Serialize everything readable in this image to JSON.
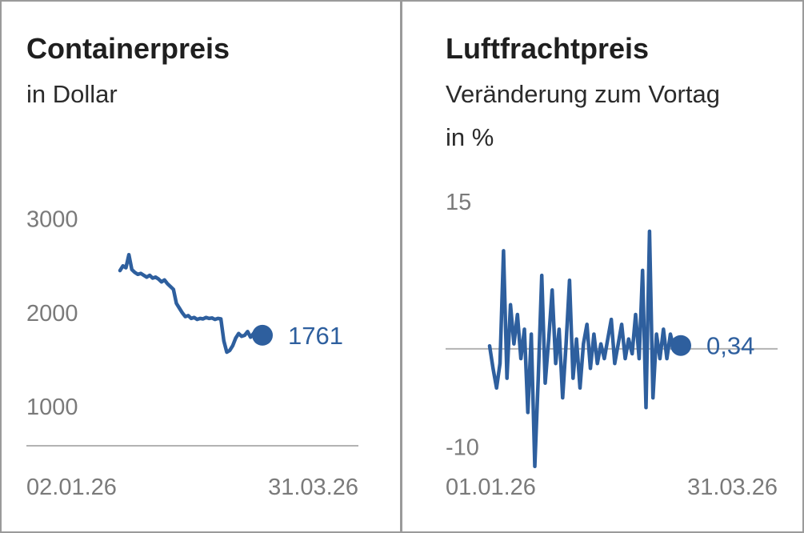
{
  "colors": {
    "series": "#2e5f9e",
    "axis": "#b3b3b3",
    "tick": "#7a7a7a",
    "border": "#9a9a9a"
  },
  "chart_data": [
    {
      "type": "line",
      "title": "Containerpreis",
      "subtitle": "in Dollar",
      "ylim": [
        600,
        3500
      ],
      "yticks": [
        "3000",
        "2000",
        "1000"
      ],
      "ytick_values": [
        3000,
        2000,
        1000
      ],
      "xticks": [
        "02.01.26",
        "31.03.26"
      ],
      "last_value_label": "1761",
      "grid": false,
      "series": [
        {
          "values": [
            2450,
            2500,
            2480,
            2620,
            2460,
            2430,
            2410,
            2420,
            2400,
            2380,
            2400,
            2370,
            2380,
            2360,
            2330,
            2350,
            2310,
            2280,
            2250,
            2100,
            2050,
            2000,
            1960,
            1970,
            1940,
            1950,
            1930,
            1940,
            1935,
            1950,
            1940,
            1945,
            1930,
            1940,
            1935,
            1700,
            1580,
            1600,
            1650,
            1730,
            1780,
            1750,
            1760,
            1800,
            1740,
            1780,
            1760,
            1720,
            1761
          ]
        }
      ]
    },
    {
      "type": "line",
      "title": "Luftfrachtpreis",
      "subtitle": "Veränderung zum Vortag",
      "subtitle2": "in %",
      "ylim": [
        -13,
        16
      ],
      "yticks": [
        "15",
        "-10"
      ],
      "ytick_values": [
        15,
        -10
      ],
      "xticks": [
        "01.01.26",
        "31.03.26"
      ],
      "last_value_label": "0,34",
      "grid": false,
      "series": [
        {
          "values": [
            0.3,
            -2.0,
            -4.0,
            -1.5,
            10.0,
            -3.0,
            4.5,
            0.5,
            3.5,
            -1.0,
            2.0,
            -6.5,
            1.5,
            -12.0,
            -3.0,
            7.5,
            -3.5,
            1.0,
            6.0,
            -1.5,
            2.0,
            -5.0,
            0.5,
            7.0,
            -3.0,
            1.0,
            -4.0,
            0.5,
            2.5,
            -2.0,
            1.5,
            -1.5,
            0.5,
            -1.0,
            1.0,
            3.0,
            -1.5,
            0.5,
            2.5,
            -1.0,
            1.0,
            -0.5,
            3.5,
            -1.0,
            8.0,
            -6.0,
            12.0,
            -5.0,
            1.5,
            -1.0,
            2.0,
            -1.0,
            1.5,
            0.0,
            1.0,
            0.34
          ]
        }
      ]
    }
  ]
}
